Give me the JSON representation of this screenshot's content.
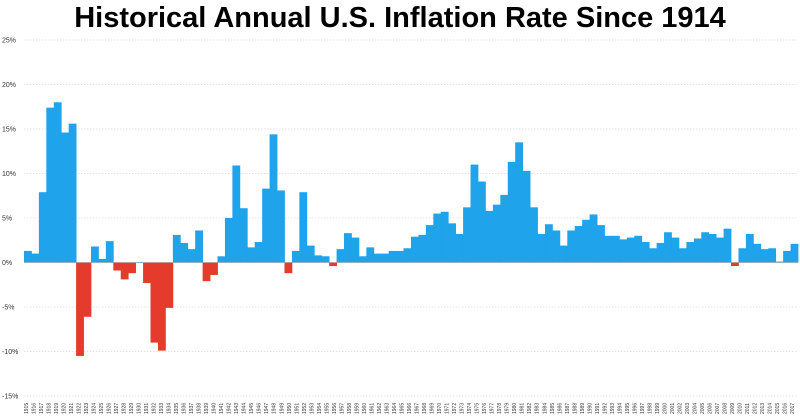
{
  "chart_data": {
    "type": "area",
    "title": "Historical Annual U.S. Inflation Rate Since 1914",
    "xlabel": "",
    "ylabel": "",
    "ylim": [
      -15,
      25
    ],
    "y_ticks": [
      25,
      20,
      15,
      10,
      5,
      0,
      -5,
      -10,
      -15
    ],
    "y_tick_labels": [
      "25%",
      "20%",
      "15%",
      "10%",
      "5%",
      "0%",
      "-5%",
      "-10%",
      "-15%"
    ],
    "x_tick_labels": [
      "1915",
      "1916",
      "1917",
      "1918",
      "1919",
      "1920",
      "1921",
      "1922",
      "1923",
      "1924",
      "1925",
      "1926",
      "1927",
      "1928",
      "1929",
      "1930",
      "1931",
      "1932",
      "1933",
      "1934",
      "1935",
      "1936",
      "1937",
      "1938",
      "1939",
      "1940",
      "1941",
      "1942",
      "1943",
      "1944",
      "1945",
      "1946",
      "1947",
      "1948",
      "1949",
      "1950",
      "1951",
      "1952",
      "1953",
      "1954",
      "1955",
      "1956",
      "1957",
      "1958",
      "1959",
      "1960",
      "1961",
      "1962",
      "1963",
      "1964",
      "1965",
      "1966",
      "1967",
      "1968",
      "1969",
      "1970",
      "1971",
      "1972",
      "1973",
      "1974",
      "1975",
      "1976",
      "1977",
      "1978",
      "1979",
      "1980",
      "1981",
      "1982",
      "1983",
      "1984",
      "1985",
      "1986",
      "1987",
      "1988",
      "1989",
      "1990",
      "1991",
      "1992",
      "1993",
      "1994",
      "1995",
      "1996",
      "1997",
      "1998",
      "1999",
      "2000",
      "2001",
      "2002",
      "2003",
      "2004",
      "2005",
      "2006",
      "2007",
      "2008",
      "2009",
      "2010",
      "2011",
      "2012",
      "2013",
      "2014",
      "2015",
      "2016",
      "2017"
    ],
    "grid": true,
    "positive_color": "#1fa3ea",
    "negative_color": "#e43b2c",
    "series": [
      {
        "x": [
          1914,
          1915,
          1916,
          1917,
          1918,
          1919,
          1920,
          1921,
          1922,
          1923,
          1924,
          1925,
          1926,
          1927,
          1928,
          1929,
          1930,
          1931,
          1932,
          1933,
          1934,
          1935,
          1936,
          1937,
          1938,
          1939,
          1940,
          1941,
          1942,
          1943,
          1944,
          1945,
          1946,
          1947,
          1948,
          1949,
          1950,
          1951,
          1952,
          1953,
          1954,
          1955,
          1956,
          1957,
          1958,
          1959,
          1960,
          1961,
          1962,
          1963,
          1964,
          1965,
          1966,
          1967,
          1968,
          1969,
          1970,
          1971,
          1972,
          1973,
          1974,
          1975,
          1976,
          1977,
          1978,
          1979,
          1980,
          1981,
          1982,
          1983,
          1984,
          1985,
          1986,
          1987,
          1988,
          1989,
          1990,
          1991,
          1992,
          1993,
          1994,
          1995,
          1996,
          1997,
          1998,
          1999,
          2000,
          2001,
          2002,
          2003,
          2004,
          2005,
          2006,
          2007,
          2008,
          2009,
          2010,
          2011,
          2012,
          2013,
          2014,
          2015,
          2016,
          2017
        ],
        "values": [
          1.3,
          1.0,
          7.9,
          17.4,
          18.0,
          14.6,
          15.6,
          -10.5,
          -6.1,
          1.8,
          0.4,
          2.4,
          -0.9,
          -1.9,
          -1.2,
          0.0,
          -2.3,
          -9.0,
          -9.9,
          -5.1,
          3.1,
          2.2,
          1.5,
          3.6,
          -2.1,
          -1.4,
          0.7,
          5.0,
          10.9,
          6.1,
          1.7,
          2.3,
          8.3,
          14.4,
          8.1,
          -1.2,
          1.3,
          7.9,
          1.9,
          0.8,
          0.7,
          -0.4,
          1.5,
          3.3,
          2.8,
          0.7,
          1.7,
          1.0,
          1.0,
          1.3,
          1.3,
          1.6,
          2.9,
          3.1,
          4.2,
          5.5,
          5.7,
          4.4,
          3.2,
          6.2,
          11.0,
          9.1,
          5.8,
          6.5,
          7.6,
          11.3,
          13.5,
          10.3,
          6.2,
          3.2,
          4.3,
          3.6,
          1.9,
          3.6,
          4.1,
          4.8,
          5.4,
          4.2,
          3.0,
          3.0,
          2.6,
          2.8,
          3.0,
          2.3,
          1.6,
          2.2,
          3.4,
          2.8,
          1.6,
          2.3,
          2.7,
          3.4,
          3.2,
          2.8,
          3.8,
          -0.4,
          1.6,
          3.2,
          2.1,
          1.5,
          1.6,
          0.1,
          1.3,
          2.1
        ]
      }
    ]
  }
}
